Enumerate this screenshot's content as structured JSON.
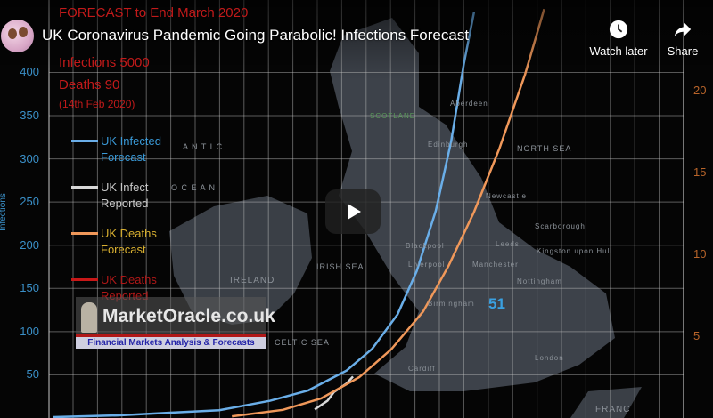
{
  "video": {
    "title": "UK Coronavirus Pandemic Going Parabolic! Infections Forecast",
    "watch_later_label": "Watch later",
    "share_label": "Share"
  },
  "frame": {
    "forecast_header": "FORECAST to End March 2020",
    "forecast_infections": "Infections  5000",
    "forecast_deaths": "Deaths 90",
    "forecast_date": "(14th Feb 2020)",
    "legend": [
      {
        "label1": "UK Infected",
        "label2": "Forecast",
        "color": "#6aaee8",
        "text_color": "#3a9ad8"
      },
      {
        "label1": "UK Infect",
        "label2": "Reported",
        "color": "#d8d8d8",
        "text_color": "#c8c8c8"
      },
      {
        "label1": "UK Deaths",
        "label2": "Forecast",
        "color": "#f0985a",
        "text_color": "#d9b030"
      },
      {
        "label1": "UK Deaths",
        "label2": "Reported",
        "color": "#c81818",
        "text_color": "#b01818"
      }
    ],
    "watermark_name": "MarketOracle.co.uk",
    "watermark_tagline": "Financial Markets Analysis & Forecasts",
    "map_number": "51",
    "map_labels": [
      "SCOTLAND",
      "Edinburgh",
      "Aberdeen",
      "Newcastle",
      "Leeds",
      "Manchester",
      "Liverpool",
      "Blackpool",
      "Birmingham",
      "London",
      "Cardiff",
      "Nottingham",
      "Scarborough",
      "Kingston upon Hull",
      "IRELAND",
      "IRISH SEA",
      "NORTH SEA",
      "A N T I C",
      "O C E A N",
      "CELTIC SEA",
      "FRANC"
    ]
  },
  "chart_data": {
    "type": "line",
    "ylabel": "Infections",
    "y_left_ticks": [
      50,
      100,
      150,
      200,
      250,
      300,
      350,
      400
    ],
    "y_right_ticks": [
      5,
      10,
      15,
      20
    ],
    "ylim_left": [
      0,
      450
    ],
    "ylim_right": [
      0,
      23
    ],
    "grid": true,
    "legend_placement": "top-left",
    "series": [
      {
        "name": "UK Infected Forecast",
        "axis": "left",
        "color": "#6aaee8",
        "points": [
          [
            0,
            1
          ],
          [
            5,
            3
          ],
          [
            9,
            6
          ],
          [
            13,
            9
          ],
          [
            17,
            20
          ],
          [
            20,
            32
          ],
          [
            23,
            55
          ],
          [
            25,
            80
          ],
          [
            27,
            120
          ],
          [
            28.5,
            170
          ],
          [
            30,
            240
          ],
          [
            31.2,
            320
          ],
          [
            32.2,
            410
          ],
          [
            33,
            470
          ]
        ]
      },
      {
        "name": "UK Infect Reported",
        "axis": "left",
        "color": "#d8d8d8",
        "points": [
          [
            20.5,
            10
          ],
          [
            21.5,
            20
          ],
          [
            22,
            30
          ],
          [
            23,
            40
          ],
          [
            23.5,
            48
          ]
        ]
      },
      {
        "name": "UK Deaths Forecast",
        "axis": "right",
        "color": "#f0985a",
        "points": [
          [
            14,
            0.1
          ],
          [
            18,
            0.5
          ],
          [
            21,
            1.2
          ],
          [
            24,
            2.5
          ],
          [
            26.5,
            4.2
          ],
          [
            29,
            6.5
          ],
          [
            31,
            9.3
          ],
          [
            33,
            12.6
          ],
          [
            35,
            16.5
          ],
          [
            37,
            21
          ],
          [
            38.5,
            25
          ]
        ]
      },
      {
        "name": "UK Deaths Reported",
        "axis": "right",
        "color": "#c81818",
        "points": []
      }
    ]
  }
}
